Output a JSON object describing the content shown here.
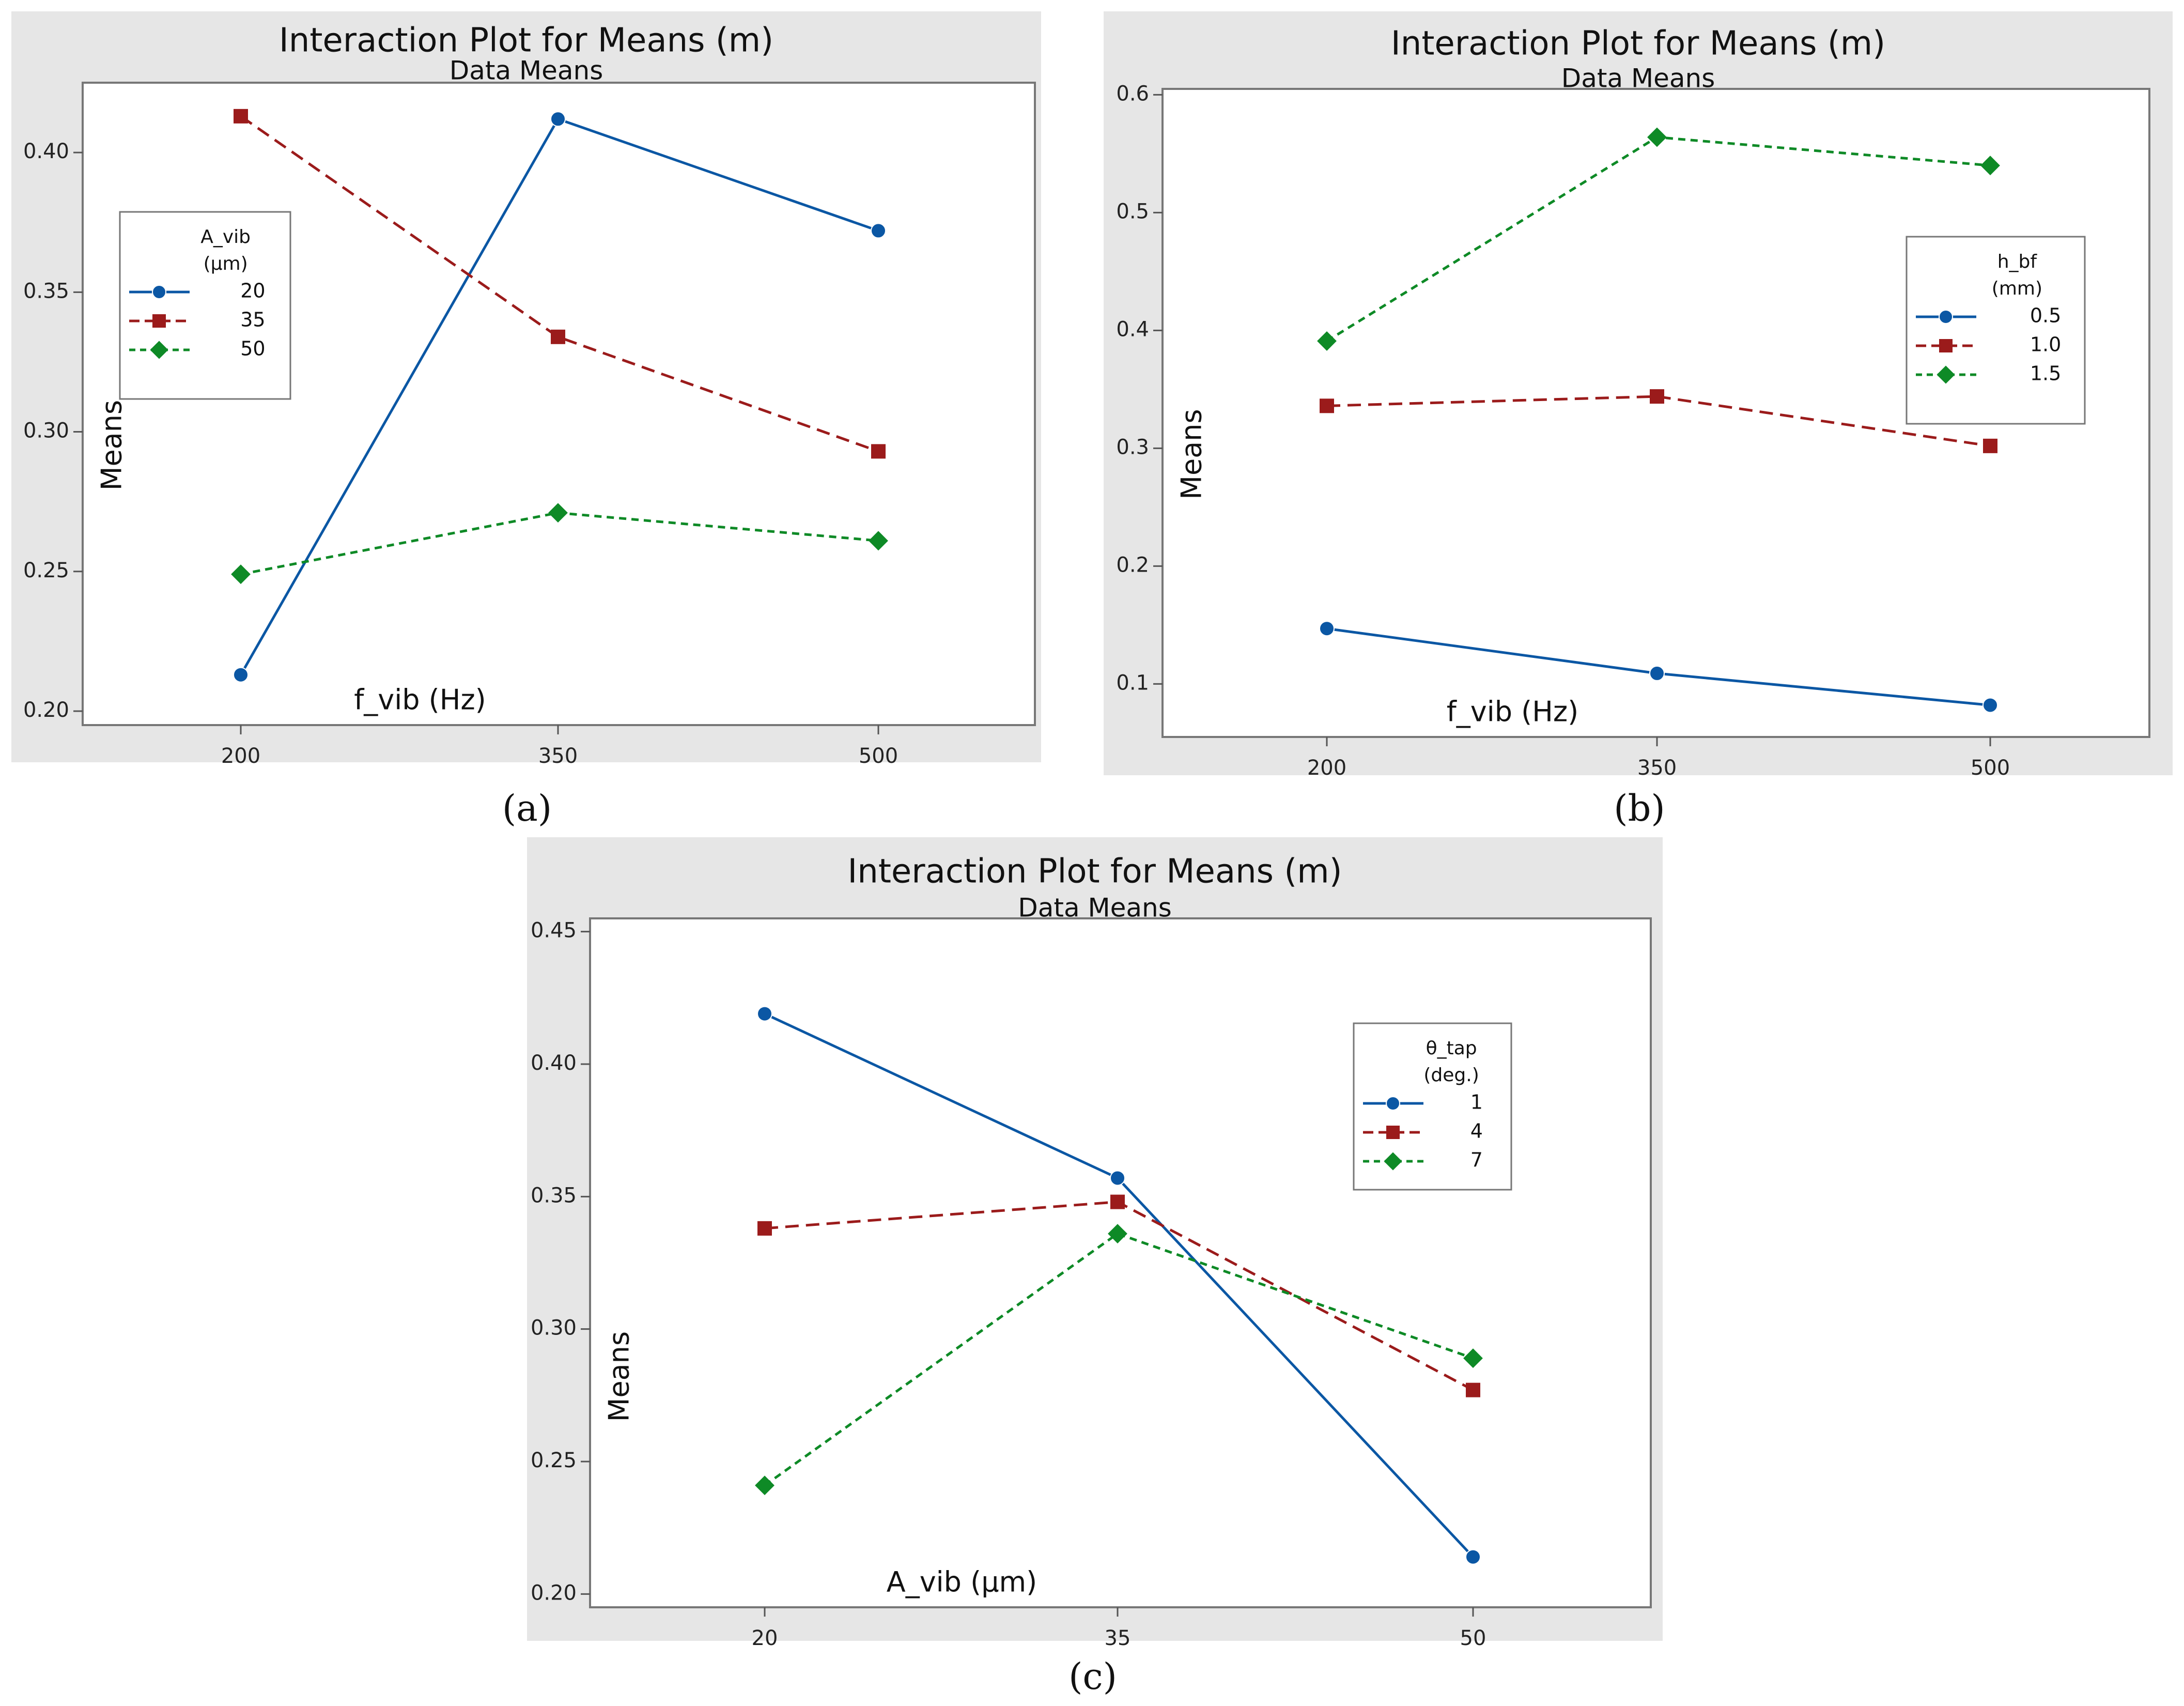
{
  "chart_data": [
    {
      "type": "line",
      "panel_label": "(a)",
      "title": "Interaction Plot for Means (m)",
      "subtitle": "Data Means",
      "xlabel": "f_vib (Hz)",
      "ylabel": "Means",
      "categories": [
        "200",
        "350",
        "500"
      ],
      "ylim": [
        0.195,
        0.425
      ],
      "yticks": [
        "0.20",
        "0.25",
        "0.30",
        "0.35",
        "0.40"
      ],
      "legend": {
        "title_line1": "A_vib",
        "title_line2": "(µm)",
        "position": "upper-left"
      },
      "series": [
        {
          "name": "20",
          "values": [
            0.213,
            0.412,
            0.372
          ],
          "color": "#0b57a4",
          "marker": "circle",
          "dash": "solid"
        },
        {
          "name": "35",
          "values": [
            0.413,
            0.334,
            0.293
          ],
          "color": "#9b1b1b",
          "marker": "square",
          "dash": "long-dash"
        },
        {
          "name": "50",
          "values": [
            0.249,
            0.271,
            0.261
          ],
          "color": "#0e8a26",
          "marker": "diamond",
          "dash": "short-dash"
        }
      ]
    },
    {
      "type": "line",
      "panel_label": "(b)",
      "title": "Interaction Plot for Means (m)",
      "subtitle": "Data Means",
      "xlabel": "f_vib (Hz)",
      "ylabel": "Means",
      "categories": [
        "200",
        "350",
        "500"
      ],
      "ylim": [
        0.055,
        0.605
      ],
      "yticks": [
        "0.1",
        "0.2",
        "0.3",
        "0.4",
        "0.5",
        "0.6"
      ],
      "legend": {
        "title_line1": "h_bf",
        "title_line2": "(mm)",
        "position": "upper-right"
      },
      "series": [
        {
          "name": "0.5",
          "values": [
            0.147,
            0.109,
            0.082
          ],
          "color": "#0b57a4",
          "marker": "circle",
          "dash": "solid"
        },
        {
          "name": "1.0",
          "values": [
            0.336,
            0.344,
            0.302
          ],
          "color": "#9b1b1b",
          "marker": "square",
          "dash": "long-dash"
        },
        {
          "name": "1.5",
          "values": [
            0.391,
            0.564,
            0.54
          ],
          "color": "#0e8a26",
          "marker": "diamond",
          "dash": "short-dash"
        }
      ]
    },
    {
      "type": "line",
      "panel_label": "(c)",
      "title": "Interaction Plot for Means (m)",
      "subtitle": "Data Means",
      "xlabel": "A_vib (µm)",
      "ylabel": "Means",
      "categories": [
        "20",
        "35",
        "50"
      ],
      "ylim": [
        0.195,
        0.455
      ],
      "yticks": [
        "0.20",
        "0.25",
        "0.30",
        "0.35",
        "0.40",
        "0.45"
      ],
      "legend": {
        "title_line1": "θ_tap",
        "title_line2": "(deg.)",
        "position": "upper-right"
      },
      "series": [
        {
          "name": "1",
          "values": [
            0.419,
            0.357,
            0.214
          ],
          "color": "#0b57a4",
          "marker": "circle",
          "dash": "solid"
        },
        {
          "name": "4",
          "values": [
            0.338,
            0.348,
            0.277
          ],
          "color": "#9b1b1b",
          "marker": "square",
          "dash": "long-dash"
        },
        {
          "name": "7",
          "values": [
            0.241,
            0.336,
            0.289
          ],
          "color": "#0e8a26",
          "marker": "diamond",
          "dash": "short-dash"
        }
      ]
    }
  ]
}
